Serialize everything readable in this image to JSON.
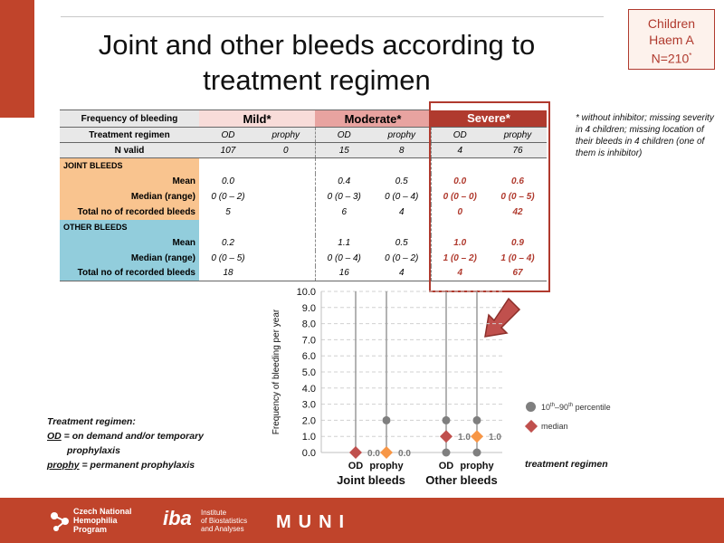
{
  "badge": {
    "line1": "Children",
    "line2": "Haem A",
    "line3": "N=210",
    "line3_sup": "*"
  },
  "title": {
    "line1": "Joint and other bleeds according to",
    "line2": "treatment regimen"
  },
  "table": {
    "freq_label": "Frequency of bleeding",
    "groups": [
      "Mild*",
      "Moderate*",
      "Severe*"
    ],
    "regimen_label": "Treatment regimen",
    "regimens": [
      "OD",
      "prophy",
      "OD",
      "prophy",
      "OD",
      "prophy"
    ],
    "nvalid_label": "N valid",
    "nvalid": [
      "107",
      "0",
      "15",
      "8",
      "4",
      "76"
    ],
    "joint_header": "JOINT BLEEDS",
    "other_header": "OTHER BLEEDS",
    "row_labels": {
      "mean": "Mean",
      "median": "Median (range)",
      "total": "Total no of recorded bleeds"
    },
    "joint": {
      "mean": [
        "0.0",
        "",
        "0.4",
        "0.5",
        "0.0",
        "0.6"
      ],
      "median": [
        "0 (0 – 2)",
        "",
        "0 (0 – 3)",
        "0 (0 – 4)",
        "0 (0 – 0)",
        "0 (0 – 5)"
      ],
      "total": [
        "5",
        "",
        "6",
        "4",
        "0",
        "42"
      ]
    },
    "other": {
      "mean": [
        "0.2",
        "",
        "1.1",
        "0.5",
        "1.0",
        "0.9"
      ],
      "median": [
        "0 (0 – 5)",
        "",
        "0 (0 – 4)",
        "0 (0 – 2)",
        "1 (0 – 2)",
        "1 (0 – 4)"
      ],
      "total": [
        "18",
        "",
        "16",
        "4",
        "4",
        "67"
      ]
    }
  },
  "footnote": "* without inhibitor; missing severity in 4 children; missing location of their bleeds in 4 children (one of them is inhibitor)",
  "chart_data": {
    "type": "scatter",
    "ylabel": "Frequency of bleeding per year",
    "ylim": [
      0,
      10
    ],
    "yticks": [
      "0.0",
      "1.0",
      "2.0",
      "3.0",
      "4.0",
      "5.0",
      "6.0",
      "7.0",
      "8.0",
      "9.0",
      "10.0"
    ],
    "grid": true,
    "groups": [
      {
        "name": "Joint bleeds",
        "categories": [
          "OD",
          "prophy"
        ]
      },
      {
        "name": "Other bleeds",
        "categories": [
          "OD",
          "prophy"
        ]
      }
    ],
    "series": [
      {
        "group": "Joint bleeds",
        "category": "OD",
        "p10": 0,
        "p90": 0,
        "median": 0.0,
        "median_label": "0.0",
        "color": "#c0504d"
      },
      {
        "group": "Joint bleeds",
        "category": "prophy",
        "p10": 0,
        "p90": 2,
        "median": 0.0,
        "median_label": "0.0",
        "color": "#f79646"
      },
      {
        "group": "Other bleeds",
        "category": "OD",
        "p10": 0,
        "p90": 2,
        "median": 1.0,
        "median_label": "1.0",
        "color": "#c0504d"
      },
      {
        "group": "Other bleeds",
        "category": "prophy",
        "p10": 0,
        "p90": 2,
        "median": 1.0,
        "median_label": "1.0",
        "color": "#f79646"
      }
    ],
    "legend": [
      {
        "label": "10th–90th percentile",
        "marker": "circle",
        "color": "#7f7f7f"
      },
      {
        "label": "median",
        "marker": "diamond",
        "color": "#c0504d"
      }
    ],
    "legend_position": "right"
  },
  "legend_texts": {
    "percentile_pre": "10",
    "percentile_sup1": "th",
    "percentile_mid": "–90",
    "percentile_sup2": "th",
    "percentile_post": " percentile",
    "median": "median"
  },
  "xaxis_caption": "treatment regimen",
  "regimen_note": {
    "title": "Treatment regimen:",
    "od_key": "OD",
    "od_text": " = on demand and/or temporary",
    "od_text2": "prophylaxis",
    "prophy_key": "prophy",
    "prophy_text": " = permanent prophylaxis"
  },
  "footer": {
    "czech": [
      "Czech National",
      "Hemophilia",
      "Program"
    ],
    "iba_big": "iba",
    "iba_small": [
      "Institute",
      "of Biostatistics",
      "and Analyses"
    ],
    "muni": "MUNI"
  },
  "colors": {
    "accent": "#c0442b",
    "severe": "#b03a2e",
    "mild": "#f8dcd9",
    "moderate": "#e8a3a0",
    "joint": "#f9c48f",
    "other": "#92cddc"
  }
}
